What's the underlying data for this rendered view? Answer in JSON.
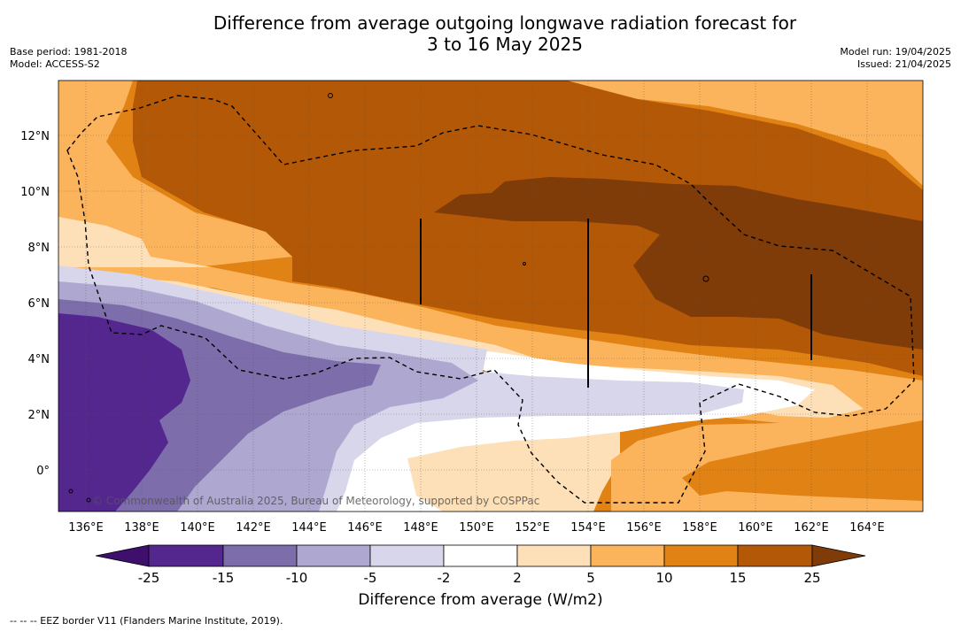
{
  "header": {
    "title_line1": "Difference from average outgoing longwave radiation forecast for",
    "title_line2": "3 to 16 May 2025",
    "base_period": "Base period: 1981-2018",
    "model": "Model: ACCESS-S2",
    "model_run": "Model run: 19/04/2025",
    "issued": "Issued: 21/04/2025"
  },
  "map": {
    "lon_ticks": [
      "136°E",
      "138°E",
      "140°E",
      "142°E",
      "144°E",
      "146°E",
      "148°E",
      "150°E",
      "152°E",
      "154°E",
      "156°E",
      "158°E",
      "160°E",
      "162°E",
      "164°E"
    ],
    "lat_ticks": [
      "12°N",
      "10°N",
      "8°N",
      "6°N",
      "4°N",
      "2°N",
      "0°"
    ],
    "copyright": "© Commonwealth of Australia 2025, Bureau of Meteorology, supported by COSPPac"
  },
  "colorbar": {
    "ticks": [
      "-25",
      "-15",
      "-10",
      "-5",
      "-2",
      "2",
      "5",
      "10",
      "15",
      "25"
    ],
    "colors": [
      "#3f0f6e",
      "#54278f",
      "#7d6eab",
      "#aea7d0",
      "#d7d6ea",
      "#ffffff",
      "#fde0b7",
      "#fbb35c",
      "#e08214",
      "#b35806",
      "#7f3b08"
    ],
    "label": "Difference from average (W/m2)"
  },
  "legend": {
    "eez_note": "--  --  -- EEZ border V11 (Flanders Marine Institute, 2019)."
  }
}
